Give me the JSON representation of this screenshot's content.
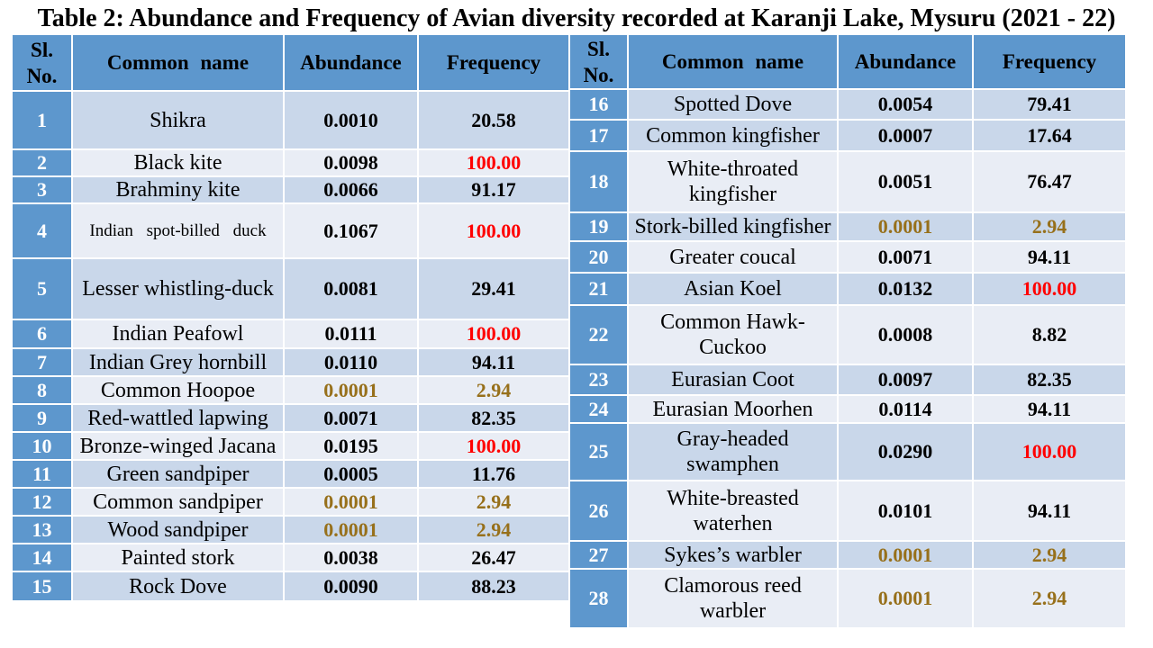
{
  "title": "Table 2: Abundance and Frequency of Avian diversity recorded at Karanji Lake, Mysuru (2021 - 22)",
  "header": {
    "sl_no_lines": [
      "Sl.",
      "No."
    ],
    "common_name": "Common name",
    "abundance": "Abundance",
    "frequency": "Frequency"
  },
  "colors": {
    "header_fill": "#5d97cd",
    "band_dark": "#c9d7ea",
    "band_light": "#e9edf5",
    "grid_line": "#ffffff",
    "highlight_red": "#ff0000",
    "highlight_olive": "#97701b",
    "sl_text": "#ffffff",
    "text": "#000000"
  },
  "tables": [
    {
      "id": "left",
      "rows": [
        {
          "sl": "1",
          "name": "Shikra",
          "abundance": "0.0010",
          "frequency": "20.58"
        },
        {
          "sl": "2",
          "name": "Black kite",
          "abundance": "0.0098",
          "frequency": "100.00",
          "frequency_tone": "red"
        },
        {
          "sl": "3",
          "name": "Brahminy kite",
          "abundance": "0.0066",
          "frequency": "91.17"
        },
        {
          "sl": "4",
          "name": "Indian spot-billed duck",
          "abundance": "0.1067",
          "frequency": "100.00",
          "frequency_tone": "red"
        },
        {
          "sl": "5",
          "name": "Lesser whistling-duck",
          "abundance": "0.0081",
          "frequency": "29.41"
        },
        {
          "sl": "6",
          "name": "Indian Peafowl",
          "abundance": "0.0111",
          "frequency": "100.00",
          "frequency_tone": "red"
        },
        {
          "sl": "7",
          "name": "Indian Grey hornbill",
          "abundance": "0.0110",
          "frequency": "94.11"
        },
        {
          "sl": "8",
          "name": "Common Hoopoe",
          "abundance": "0.0001",
          "frequency": "2.94",
          "abundance_tone": "olive",
          "frequency_tone": "olive"
        },
        {
          "sl": "9",
          "name": "Red-wattled lapwing",
          "abundance": "0.0071",
          "frequency": "82.35"
        },
        {
          "sl": "10",
          "name": "Bronze-winged Jacana",
          "abundance": "0.0195",
          "frequency": "100.00",
          "frequency_tone": "red"
        },
        {
          "sl": "11",
          "name": "Green sandpiper",
          "abundance": "0.0005",
          "frequency": "11.76"
        },
        {
          "sl": "12",
          "name": "Common sandpiper",
          "abundance": "0.0001",
          "frequency": "2.94",
          "abundance_tone": "olive",
          "frequency_tone": "olive"
        },
        {
          "sl": "13",
          "name": "Wood sandpiper",
          "abundance": "0.0001",
          "frequency": "2.94",
          "abundance_tone": "olive",
          "frequency_tone": "olive"
        },
        {
          "sl": "14",
          "name": "Painted stork",
          "abundance": "0.0038",
          "frequency": "26.47"
        },
        {
          "sl": "15",
          "name": "Rock Dove",
          "abundance": "0.0090",
          "frequency": "88.23"
        }
      ]
    },
    {
      "id": "right",
      "rows": [
        {
          "sl": "16",
          "name": "Spotted Dove",
          "abundance": "0.0054",
          "frequency": "79.41"
        },
        {
          "sl": "17",
          "name": "Common kingfisher",
          "abundance": "0.0007",
          "frequency": "17.64"
        },
        {
          "sl": "18",
          "name": [
            "White-throated",
            "kingfisher"
          ],
          "abundance": "0.0051",
          "frequency": "76.47"
        },
        {
          "sl": "19",
          "name": "Stork-billed kingfisher",
          "abundance": "0.0001",
          "frequency": "2.94",
          "abundance_tone": "olive",
          "frequency_tone": "olive"
        },
        {
          "sl": "20",
          "name": "Greater coucal",
          "abundance": "0.0071",
          "frequency": "94.11"
        },
        {
          "sl": "21",
          "name": "Asian Koel",
          "abundance": "0.0132",
          "frequency": "100.00",
          "frequency_tone": "red"
        },
        {
          "sl": "22",
          "name": [
            "Common Hawk-",
            "Cuckoo"
          ],
          "abundance": "0.0008",
          "frequency": "8.82"
        },
        {
          "sl": "23",
          "name": "Eurasian Coot",
          "abundance": "0.0097",
          "frequency": "82.35"
        },
        {
          "sl": "24",
          "name": "Eurasian Moorhen",
          "abundance": "0.0114",
          "frequency": "94.11"
        },
        {
          "sl": "25",
          "name": [
            "Gray-headed",
            "swamphen"
          ],
          "abundance": "0.0290",
          "frequency": "100.00",
          "frequency_tone": "red"
        },
        {
          "sl": "26",
          "name": [
            "White-breasted",
            "waterhen"
          ],
          "abundance": "0.0101",
          "frequency": "94.11"
        },
        {
          "sl": "27",
          "name": "Sykes’s warbler",
          "abundance": "0.0001",
          "frequency": "2.94",
          "abundance_tone": "olive",
          "frequency_tone": "olive"
        },
        {
          "sl": "28",
          "name": [
            "Clamorous reed",
            "warbler"
          ],
          "abundance": "0.0001",
          "frequency": "2.94",
          "abundance_tone": "olive",
          "frequency_tone": "olive"
        }
      ]
    }
  ]
}
